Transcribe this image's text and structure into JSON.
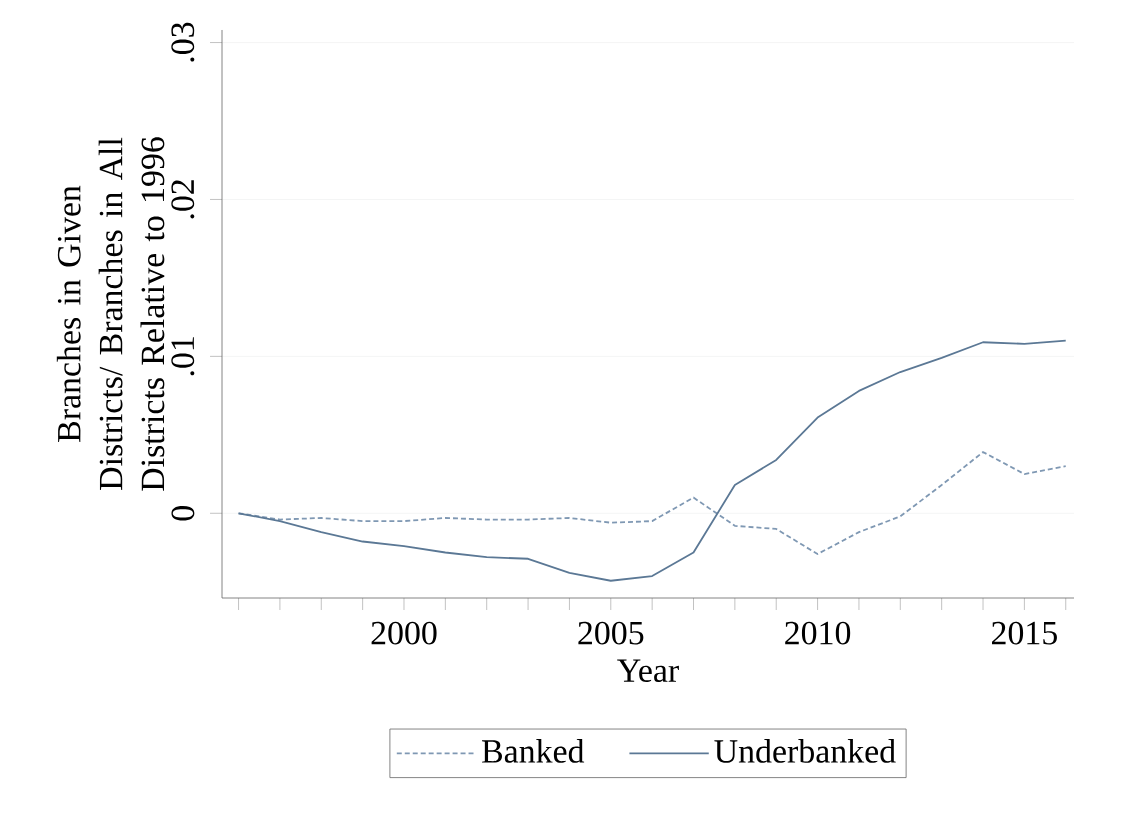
{
  "chart_data": {
    "type": "line",
    "xlabel": "Year",
    "ylabel": "Branches in Given Districts/ Branches in All Districts Relative to 1996",
    "x": [
      1996,
      1997,
      1998,
      1999,
      2000,
      2001,
      2002,
      2003,
      2004,
      2005,
      2006,
      2007,
      2008,
      2009,
      2010,
      2011,
      2012,
      2013,
      2014,
      2015,
      2016
    ],
    "series": [
      {
        "name": "Banked",
        "color": "#7f98b3",
        "line_style": "dashed",
        "values": [
          0,
          -0.0004,
          -0.0003,
          -0.0005,
          -0.0005,
          -0.0003,
          -0.0004,
          -0.0004,
          -0.0003,
          -0.0006,
          -0.0005,
          0.001,
          -0.0008,
          -0.001,
          -0.0026,
          -0.0012,
          -0.0002,
          0.0018,
          0.0039,
          0.0025,
          0.003
        ]
      },
      {
        "name": "Underbanked",
        "color": "#5b7895",
        "line_style": "solid",
        "values": [
          0,
          -0.0005,
          -0.0012,
          -0.0018,
          -0.0021,
          -0.0025,
          -0.0028,
          -0.0029,
          -0.0038,
          -0.0043,
          -0.004,
          -0.0025,
          0.0018,
          0.0034,
          0.0061,
          0.0078,
          0.009,
          0.0099,
          0.0109,
          0.0108,
          0.011
        ]
      }
    ],
    "xlim": [
      1995.6,
      2016.2
    ],
    "ylim": [
      -0.0054,
      0.0308
    ],
    "xticks": [
      {
        "value": 1996,
        "label": null
      },
      {
        "value": 1997,
        "label": null
      },
      {
        "value": 1998,
        "label": null
      },
      {
        "value": 1999,
        "label": null
      },
      2000,
      {
        "value": 2001,
        "label": null
      },
      {
        "value": 2002,
        "label": null
      },
      {
        "value": 2003,
        "label": null
      },
      {
        "value": 2004,
        "label": null
      },
      2005,
      {
        "value": 2006,
        "label": null
      },
      {
        "value": 2007,
        "label": null
      },
      {
        "value": 2008,
        "label": null
      },
      {
        "value": 2009,
        "label": null
      },
      2010,
      {
        "value": 2011,
        "label": null
      },
      {
        "value": 2012,
        "label": null
      },
      {
        "value": 2013,
        "label": null
      },
      {
        "value": 2014,
        "label": null
      },
      2015,
      {
        "value": 2016,
        "label": null
      }
    ],
    "yticks": [
      {
        "value": 0,
        "label": "0"
      },
      {
        "value": 0.01,
        "label": ".01"
      },
      {
        "value": 0.02,
        "label": ".02"
      },
      {
        "value": 0.03,
        "label": ".03"
      }
    ],
    "grid": "y",
    "legend": "bottom"
  }
}
